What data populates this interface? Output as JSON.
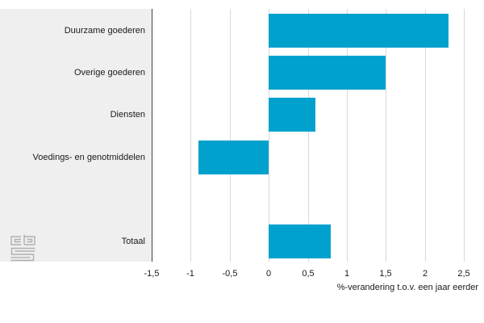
{
  "chart_data": {
    "type": "bar",
    "orientation": "horizontal",
    "title": "",
    "categories": [
      "Duurzame goederen",
      "Overige goederen",
      "Diensten",
      "Voedings- en genotmiddelen",
      "Totaal"
    ],
    "values": [
      2.3,
      1.5,
      0.6,
      -0.9,
      0.8
    ],
    "row_index": [
      0,
      1,
      2,
      3,
      5
    ],
    "xlabel": "%-verandering t.o.v. een jaar eerder",
    "ylabel": "",
    "xlim": [
      -1.5,
      2.5
    ],
    "xticks": [
      -1.5,
      -1,
      -0.5,
      0,
      0.5,
      1,
      1.5,
      2,
      2.5
    ],
    "xtick_labels": [
      "-1,5",
      "-1",
      "-0,5",
      "0",
      "0,5",
      "1",
      "1,5",
      "2",
      "2,5"
    ],
    "grid": "vertical",
    "legend": "none",
    "colors": {
      "bar": "#00a1cd",
      "category_panel": "#efefef",
      "gridline": "#d9d9d9",
      "axis_line": "#404040",
      "text": "#1a1a1a",
      "logo": "#b0b0b0"
    }
  },
  "branding": {
    "logo_name": "cbs-logo"
  }
}
